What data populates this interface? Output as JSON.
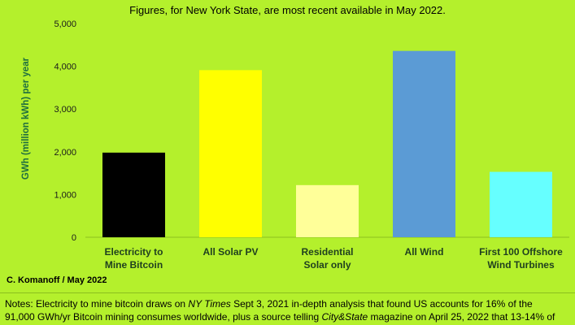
{
  "chart_data": {
    "type": "bar",
    "title": "Figures, for New York State, are most recent available in May 2022.",
    "ylabel": "GWh (million kWh) per year",
    "xlabel": "",
    "ylim": [
      0,
      5000
    ],
    "yticks": [
      0,
      1000,
      2000,
      3000,
      4000,
      5000
    ],
    "ytick_labels": [
      "0",
      "1,000",
      "2,000",
      "3,000",
      "4,000",
      "5,000"
    ],
    "grid": false,
    "categories": [
      [
        "Electricity to",
        "Mine Bitcoin"
      ],
      [
        "All Solar PV"
      ],
      [
        "Residential",
        "Solar only"
      ],
      [
        "All Wind"
      ],
      [
        "First 100 Offshore",
        "Wind Turbines"
      ]
    ],
    "values": [
      1980,
      3910,
      1220,
      4360,
      1530
    ],
    "colors": [
      "#000000",
      "#ffff00",
      "#ffff99",
      "#5b9bd5",
      "#66ffff"
    ]
  },
  "credit": "C. Komanoff / May 2022",
  "notes": {
    "line1": [
      {
        "text": "Notes: Electricity to mine bitcoin draws on ",
        "italic": false
      },
      {
        "text": "NY Times",
        "italic": true
      },
      {
        "text": " Sept 3, 2021 in-depth analysis that found US accounts for 16% of the",
        "italic": false
      }
    ],
    "line2": [
      {
        "text": "91,000 GWh/yr Bitcoin mining consumes worldwide, plus a source telling ",
        "italic": false
      },
      {
        "text": "City&State",
        "italic": true
      },
      {
        "text": " magazine on April 25, 2022 that 13-14% of",
        "italic": false
      }
    ]
  }
}
